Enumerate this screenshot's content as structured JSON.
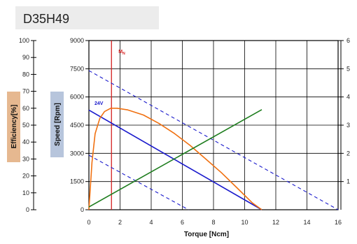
{
  "title": "D35H49",
  "chart_data": {
    "type": "line",
    "title": "D35H49",
    "xlabel": "Torque [Ncm]",
    "ylabel_speed": "Speed [Rpm]",
    "ylabel_efficiency": "Efficiency[%]",
    "x_ticks": [
      0,
      2,
      4,
      6,
      8,
      10,
      12,
      14,
      16
    ],
    "xlim": [
      0,
      16
    ],
    "speed_ticks": [
      0,
      1500,
      3000,
      4500,
      6000,
      7500,
      9000
    ],
    "speed_lim": [
      0,
      9000
    ],
    "efficiency_ticks": [
      0,
      10,
      20,
      30,
      40,
      50,
      60,
      70,
      80,
      90,
      100
    ],
    "efficiency_lim": [
      0,
      100
    ],
    "right_ticks": [
      1,
      2,
      3,
      4,
      5,
      6
    ],
    "right_lim": [
      0,
      6
    ],
    "grid": true,
    "annotations": [
      {
        "text": "24V",
        "color": "#1a1acc"
      },
      {
        "text": "M",
        "subscript": "N",
        "color": "#d42020"
      }
    ],
    "rated_torque_x": 1.45,
    "series": [
      {
        "id": "speed-24v",
        "axis": "speed",
        "color": "#1a1acc",
        "style": "solid",
        "x": [
          0,
          11.1
        ],
        "y": [
          5300,
          0
        ]
      },
      {
        "id": "speed-upper",
        "axis": "speed",
        "color": "#1a1acc",
        "style": "dashed",
        "x": [
          0,
          16
        ],
        "y": [
          7400,
          0
        ]
      },
      {
        "id": "speed-lower",
        "axis": "speed",
        "color": "#1a1acc",
        "style": "dashed",
        "x": [
          0,
          6.4
        ],
        "y": [
          2900,
          0
        ]
      },
      {
        "id": "efficiency",
        "axis": "efficiency",
        "color": "#f07010",
        "style": "solid",
        "x": [
          0,
          0.2,
          0.4,
          0.7,
          1.0,
          1.4,
          1.8,
          2.5,
          3.5,
          4.5,
          5.5,
          6.5,
          7.5,
          8.5,
          9.5,
          10.5,
          11.1
        ],
        "y": [
          0,
          28,
          45,
          54,
          58,
          60,
          60,
          59,
          56,
          51,
          45,
          38,
          30,
          22,
          13,
          4,
          0
        ]
      },
      {
        "id": "current",
        "axis": "right",
        "color": "#1e7d1e",
        "style": "solid",
        "x": [
          0,
          11.1
        ],
        "y": [
          0.1,
          3.55
        ]
      }
    ]
  }
}
